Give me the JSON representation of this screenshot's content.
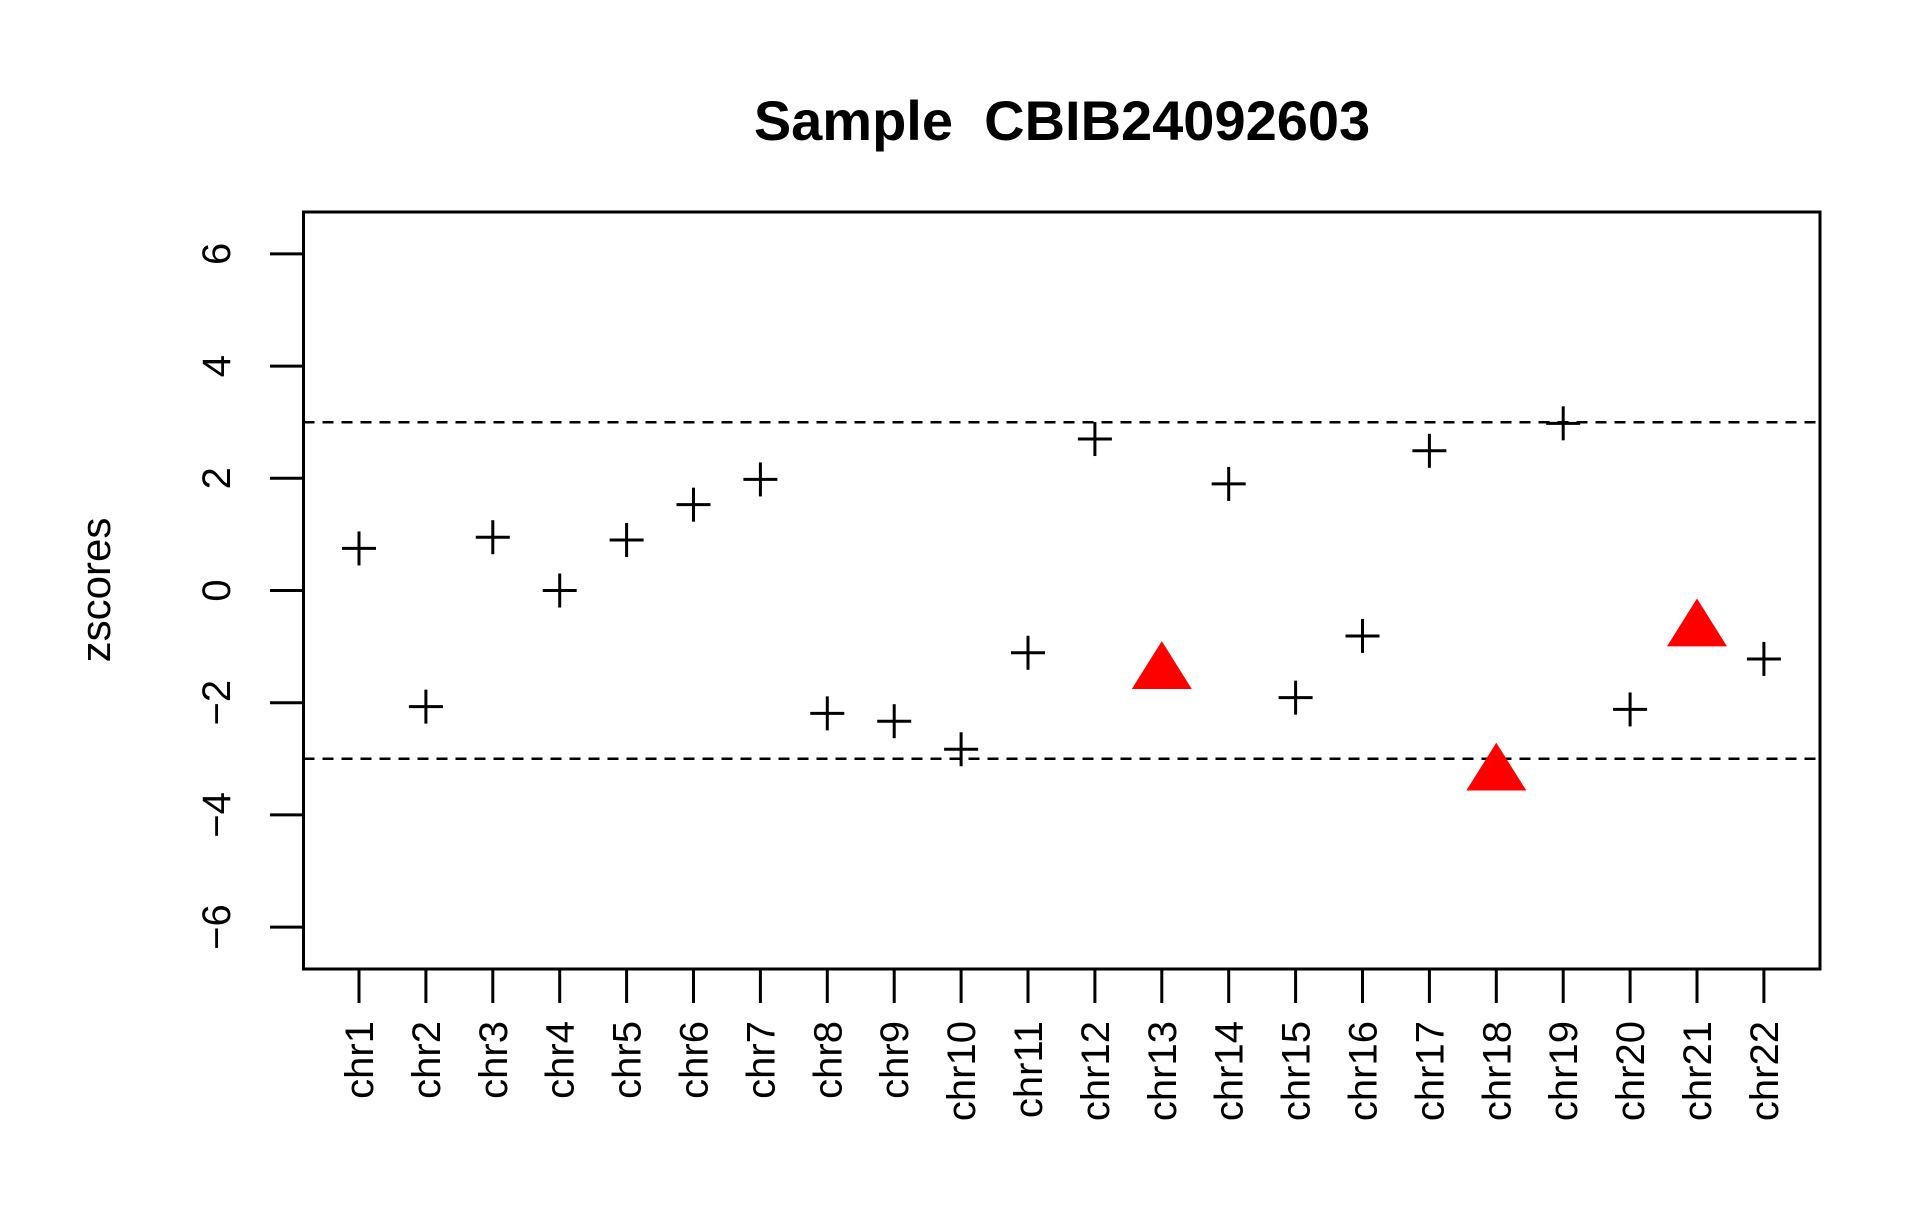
{
  "chart_data": {
    "type": "scatter",
    "title": "Sample  CBIB24092603",
    "xlabel": "",
    "ylabel": "zscores",
    "ylim": [
      -6.7,
      6.7
    ],
    "yticks": [
      "6",
      "4",
      "2",
      "0",
      "−2",
      "−4",
      "−6"
    ],
    "ytick_values": [
      6,
      4,
      2,
      0,
      -2,
      -4,
      -6
    ],
    "grid": false,
    "reference_lines": [
      3,
      -3
    ],
    "categories": [
      "chr1",
      "chr2",
      "chr3",
      "chr4",
      "chr5",
      "chr6",
      "chr7",
      "chr8",
      "chr9",
      "chr10",
      "chr11",
      "chr12",
      "chr13",
      "chr14",
      "chr15",
      "chr16",
      "chr17",
      "chr18",
      "chr19",
      "chr20",
      "chr21",
      "chr22"
    ],
    "values": [
      0.75,
      -2.07,
      0.95,
      0.0,
      0.9,
      1.53,
      1.98,
      -2.19,
      -2.33,
      -2.83,
      -1.11,
      2.7,
      -1.42,
      1.9,
      -1.91,
      -0.81,
      2.49,
      -3.23,
      2.98,
      -2.12,
      -0.66,
      -1.22
    ],
    "highlighted": [
      "chr13",
      "chr18",
      "chr21"
    ],
    "colors": {
      "normal": "#000000",
      "highlight": "#ff0000"
    },
    "markers": {
      "normal": "plus",
      "highlight": "filled-triangle"
    }
  }
}
